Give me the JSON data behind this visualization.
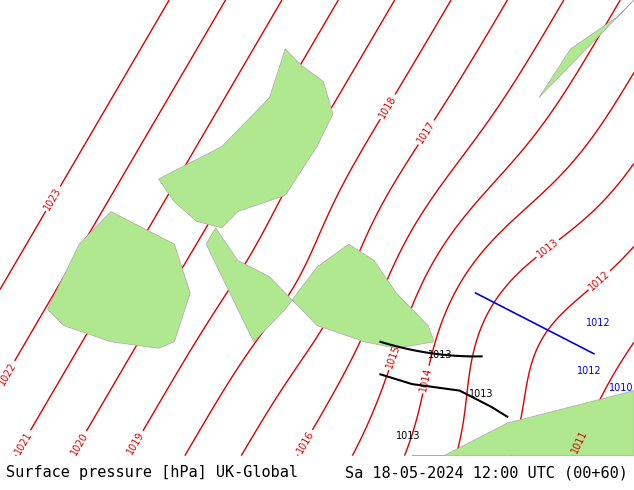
{
  "title_left": "Surface pressure [hPa] UK-Global",
  "title_right": "Sa 18-05-2024 12:00 UTC (00+60)",
  "bg_color": "#d8d8d8",
  "land_color": "#b0e890",
  "land_edge_color": "#aaaaaa",
  "isobar_color_red": "#dd0000",
  "isobar_color_black": "#000000",
  "isobar_color_blue": "#0000dd",
  "footer_bg": "#e8e8e8",
  "footer_text_color": "#000000",
  "font_size_footer": 11,
  "font_size_labels": 9,
  "figsize": [
    6.34,
    4.9
  ],
  "dpi": 100
}
